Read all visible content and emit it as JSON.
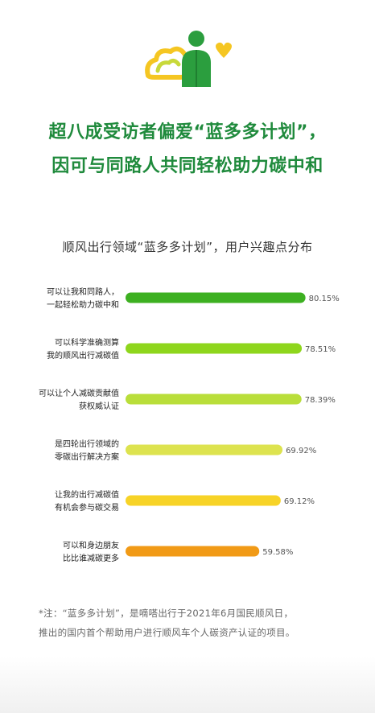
{
  "header": {
    "headline_line1": "超八成受访者偏爱“蓝多多计划”，",
    "headline_line2": "因可与同路人共同轻松助力碳中和"
  },
  "chart_data": {
    "type": "bar",
    "orientation": "horizontal",
    "title": "顺风出行领域“蓝多多计划”，用户兴趣点分布",
    "xlim": [
      0,
      100
    ],
    "grid": false,
    "categories": [
      [
        "可以让我和同路人，",
        "一起轻松助力碳中和"
      ],
      [
        "可以科学准确测算",
        "我的顺风出行减碳值"
      ],
      [
        "可以让个人减碳贡献值",
        "获权威认证"
      ],
      [
        "是四轮出行领域的",
        "零碳出行解决方案"
      ],
      [
        "让我的出行减碳值",
        "有机会参与碳交易"
      ],
      [
        "可以和身边朋友",
        "比比谁减碳更多"
      ]
    ],
    "values": [
      80.15,
      78.51,
      78.39,
      69.92,
      69.12,
      59.58
    ],
    "value_labels": [
      "80.15%",
      "78.51%",
      "78.39%",
      "69.92%",
      "69.12%",
      "59.58%"
    ],
    "colors": [
      "#3db021",
      "#8ed61c",
      "#b9de3a",
      "#dde34f",
      "#f7d327",
      "#f19a16"
    ]
  },
  "footnote": {
    "line1": "*注：“蓝多多计划”，是嘀嗒出行于2021年6月国民顺风日，",
    "line2": "推出的国内首个帮助用户进行顺风车个人碳资产认证的项目。"
  },
  "illustration": {
    "icons": [
      "cloud-icon",
      "person-icon",
      "heart-icon"
    ],
    "colors": {
      "green": "#2b9e3e",
      "yellow": "#f5c622",
      "lime": "#c8d93a"
    }
  }
}
